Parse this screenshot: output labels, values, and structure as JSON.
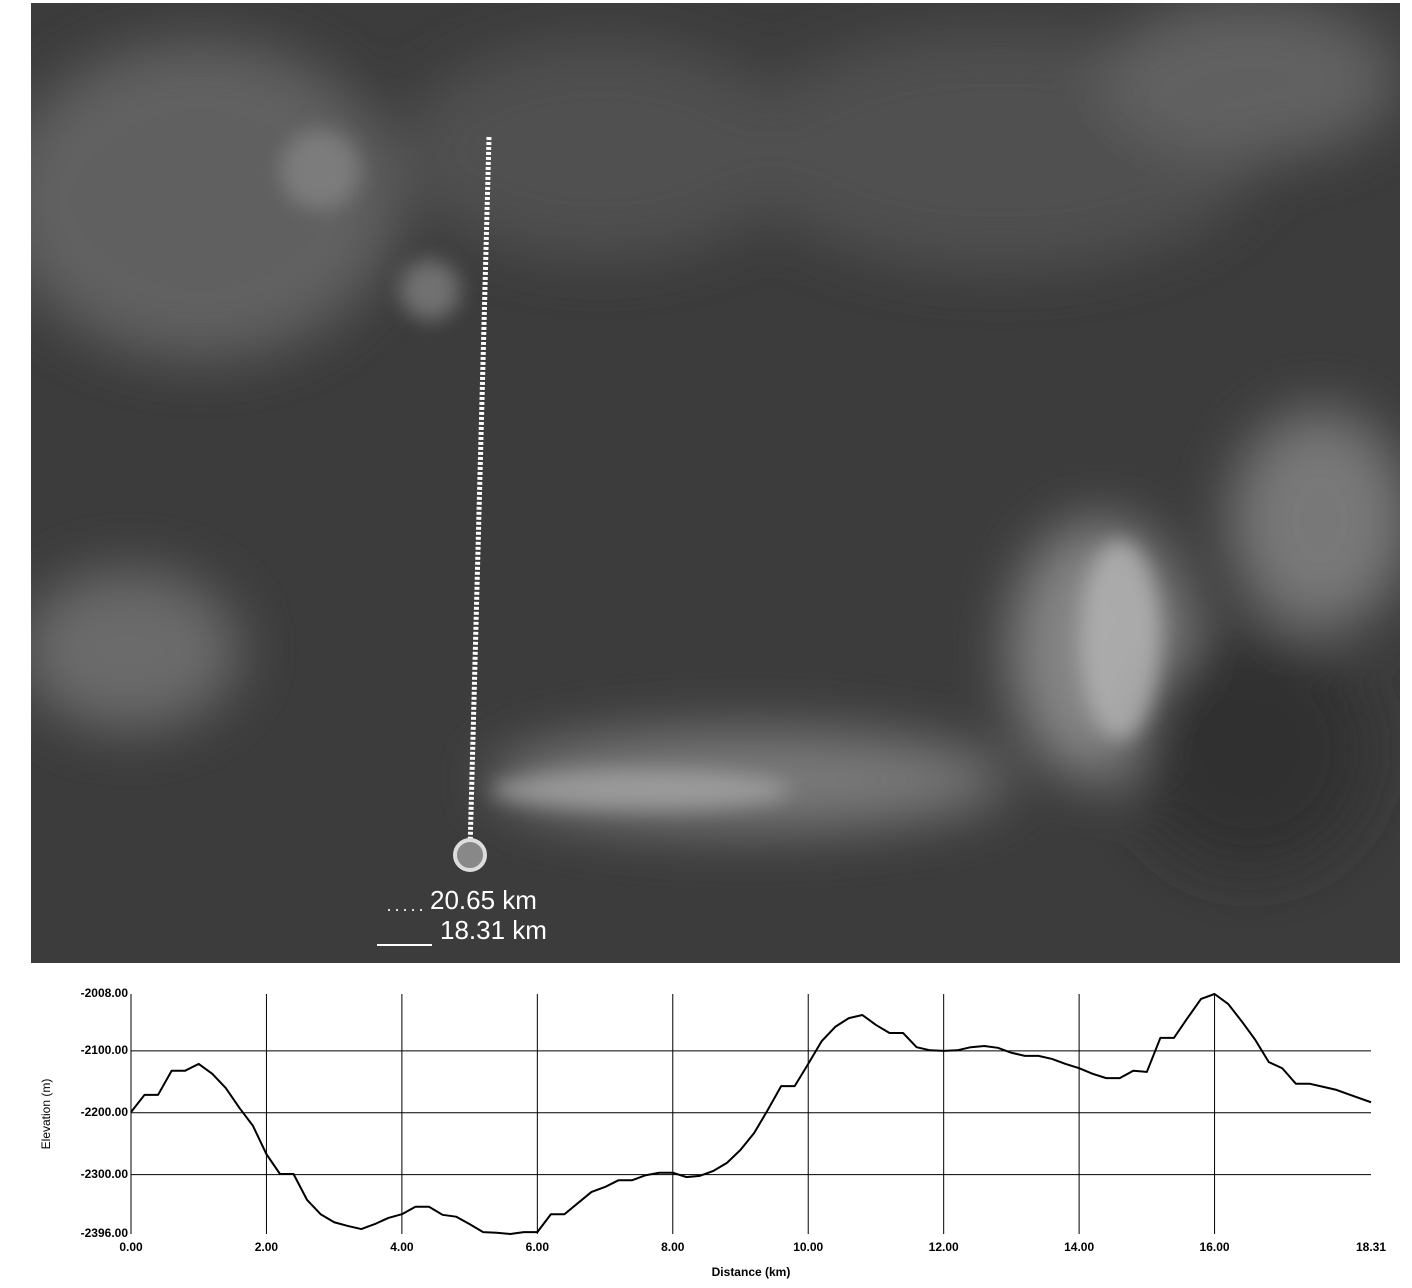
{
  "measurement": {
    "path_distance": "20.65 km",
    "straight_distance": "18.31 km"
  },
  "chart_data": {
    "type": "line",
    "x_label": "Distance (km)",
    "y_label": "Elevation (m)",
    "color": "#000000",
    "grid": true,
    "xlim": [
      0,
      18.31
    ],
    "ylim": [
      -2396,
      -2008
    ],
    "xticks": [
      {
        "value": 0,
        "label": "0.00"
      },
      {
        "value": 2,
        "label": "2.00"
      },
      {
        "value": 4,
        "label": "4.00"
      },
      {
        "value": 6,
        "label": "6.00"
      },
      {
        "value": 8,
        "label": "8.00"
      },
      {
        "value": 10,
        "label": "10.00"
      },
      {
        "value": 12,
        "label": "12.00"
      },
      {
        "value": 14,
        "label": "14.00"
      },
      {
        "value": 16,
        "label": "16.00"
      },
      18.31
    ],
    "yticks": [
      {
        "value": -2396,
        "label": "-2396.00"
      },
      {
        "value": -2300,
        "label": "-2300.00"
      },
      {
        "value": -2200,
        "label": "-2200.00"
      },
      {
        "value": -2100,
        "label": "-2100.00"
      },
      {
        "value": -2008,
        "label": "-2008.00"
      }
    ],
    "x": [
      0,
      0.2,
      0.4,
      0.6,
      0.8,
      1.0,
      1.2,
      1.4,
      1.6,
      1.8,
      2.0,
      2.2,
      2.4,
      2.6,
      2.8,
      3.0,
      3.2,
      3.4,
      3.6,
      3.8,
      4.0,
      4.2,
      4.4,
      4.6,
      4.8,
      5.0,
      5.2,
      5.4,
      5.6,
      5.8,
      6.0,
      6.2,
      6.4,
      6.6,
      6.8,
      7.0,
      7.2,
      7.4,
      7.6,
      7.8,
      8.0,
      8.2,
      8.4,
      8.6,
      8.8,
      9.0,
      9.2,
      9.4,
      9.6,
      9.8,
      10.0,
      10.2,
      10.4,
      10.6,
      10.8,
      11.0,
      11.2,
      11.4,
      11.6,
      11.8,
      12.0,
      12.2,
      12.4,
      12.6,
      12.8,
      13.0,
      13.2,
      13.4,
      13.6,
      13.8,
      14.0,
      14.2,
      14.4,
      14.6,
      14.8,
      15.0,
      15.2,
      15.4,
      15.6,
      15.8,
      16.0,
      16.2,
      16.4,
      16.6,
      16.8,
      17.0,
      17.2,
      17.4,
      17.6,
      17.8,
      18.0,
      18.31
    ],
    "values": [
      -2199,
      -2171,
      -2171,
      -2132,
      -2132,
      -2121,
      -2137,
      -2160,
      -2192,
      -2221,
      -2267,
      -2299,
      -2299,
      -2341,
      -2364,
      -2377,
      -2383,
      -2388,
      -2380,
      -2370,
      -2364,
      -2352,
      -2352,
      -2365,
      -2368,
      -2380,
      -2393,
      -2394,
      -2396,
      -2393,
      -2393,
      -2364,
      -2364,
      -2346,
      -2328,
      -2320,
      -2309,
      -2309,
      -2301,
      -2297,
      -2297,
      -2304,
      -2302,
      -2294,
      -2281,
      -2260,
      -2233,
      -2196,
      -2157,
      -2157,
      -2121,
      -2084,
      -2061,
      -2047,
      -2042,
      -2058,
      -2071,
      -2071,
      -2094,
      -2099,
      -2100,
      -2099,
      -2094,
      -2092,
      -2095,
      -2103,
      -2108,
      -2108,
      -2113,
      -2121,
      -2128,
      -2137,
      -2144,
      -2144,
      -2132,
      -2134,
      -2079,
      -2079,
      -2047,
      -2016,
      -2008,
      -2024,
      -2052,
      -2082,
      -2118,
      -2128,
      -2153,
      -2153,
      -2158,
      -2163,
      -2171,
      -2183
    ]
  }
}
